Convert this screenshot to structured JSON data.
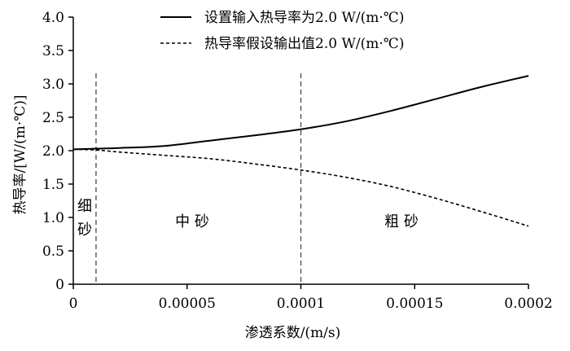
{
  "chart_data": {
    "type": "line",
    "xlabel": "渗透系数/(m/s)",
    "ylabel": "热导率/[W/(m·℃)]",
    "xlim": [
      0,
      0.0002
    ],
    "ylim": [
      0,
      4.0
    ],
    "x_ticks": [
      "0",
      "0.00005",
      "0.0001",
      "0.00015",
      "0.0002"
    ],
    "x_tick_values": [
      0,
      5e-05,
      0.0001,
      0.00015,
      0.0002
    ],
    "y_ticks": [
      "0",
      "0.5",
      "1.0",
      "1.5",
      "2.0",
      "2.5",
      "3.0",
      "3.5",
      "4.0"
    ],
    "y_tick_values": [
      0,
      0.5,
      1.0,
      1.5,
      2.0,
      2.5,
      3.0,
      3.5,
      4.0
    ],
    "legend_position": "top-center",
    "series": [
      {
        "name": "设置输入热导率为2.0 W/(m·℃)",
        "style": "solid",
        "x": [
          0,
          1e-05,
          2e-05,
          4e-05,
          6e-05,
          8e-05,
          0.0001,
          0.00012,
          0.00014,
          0.00016,
          0.00018,
          0.0002
        ],
        "y": [
          2.02,
          2.03,
          2.04,
          2.07,
          2.15,
          2.23,
          2.32,
          2.44,
          2.6,
          2.78,
          2.96,
          3.12
        ]
      },
      {
        "name": "热导率假设输出值2.0 W/(m·℃)",
        "style": "dashed",
        "x": [
          0,
          1e-05,
          2e-05,
          4e-05,
          6e-05,
          8e-05,
          0.0001,
          0.00012,
          0.00014,
          0.00016,
          0.00018,
          0.0002
        ],
        "y": [
          2.02,
          2.01,
          1.98,
          1.93,
          1.88,
          1.8,
          1.71,
          1.6,
          1.46,
          1.28,
          1.08,
          0.87
        ]
      }
    ],
    "divider_lines_x": [
      1e-05,
      0.0001
    ],
    "regions": [
      {
        "label_lines": [
          "细",
          "砂"
        ]
      },
      {
        "label": "中  砂"
      },
      {
        "label": "粗  砂"
      }
    ],
    "grid": false
  }
}
